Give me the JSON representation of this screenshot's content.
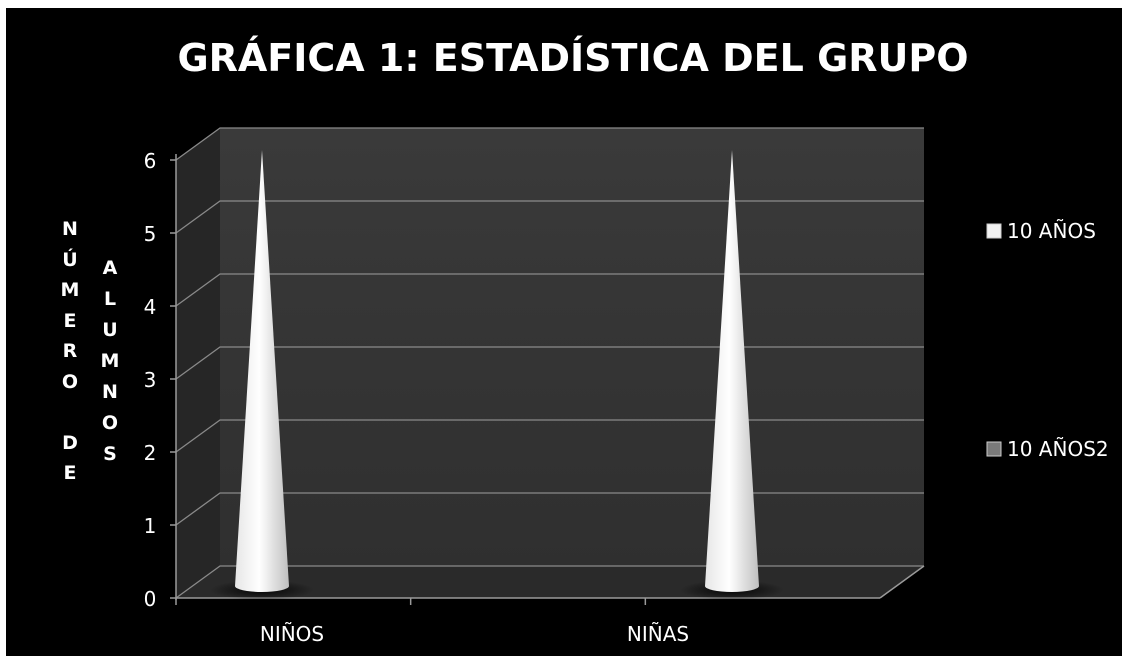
{
  "chart_data": {
    "type": "bar",
    "title": "GRÁFICA 1: ESTADÍSTICA DEL GRUPO",
    "ylabel_lines": [
      "NÚMERO DE",
      "ALUMNOS"
    ],
    "categories": [
      "NIÑOS",
      "NIÑAS"
    ],
    "series": [
      {
        "name": "10 AÑOS",
        "values": [
          6,
          6
        ]
      },
      {
        "name": "10 AÑOS2",
        "values": [
          0,
          0
        ]
      }
    ],
    "yticks": [
      0,
      1,
      2,
      3,
      4,
      5,
      6
    ],
    "ylim": [
      0,
      6
    ],
    "grid": true,
    "legend": "right",
    "bar_shape": "cone",
    "colors": {
      "background": "#000000",
      "wall": "#333333",
      "floor": "#2a2a2a",
      "text": "#ffffff",
      "series1": "#f2f2f2",
      "series2": "#7a7a7a"
    }
  }
}
